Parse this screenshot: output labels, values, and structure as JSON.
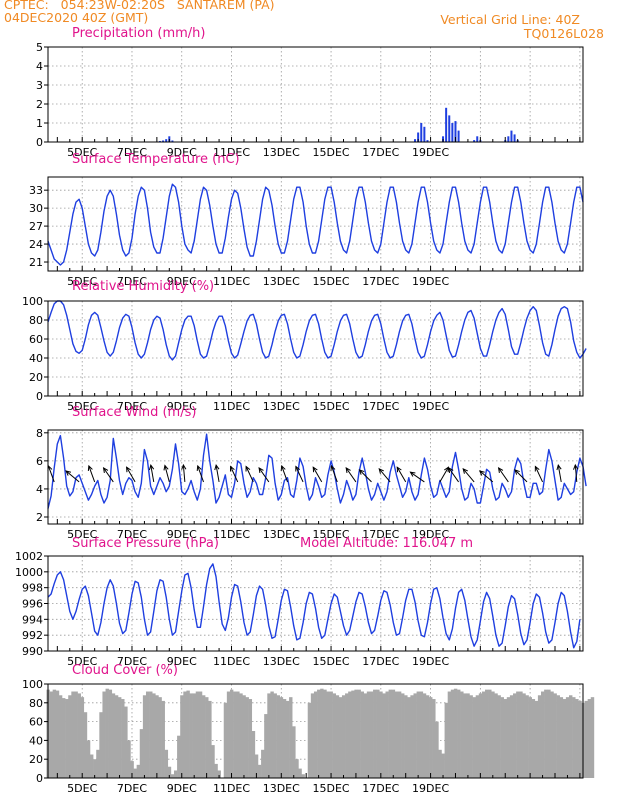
{
  "header": {
    "line1_left": "CPTEC:   054:23W-02:20S   SANTAREM (PA)",
    "line2_left": "04DEC2020 40Z (GMT)",
    "line1_right": "Vertical Grid Line: 40Z",
    "line2_right": "TQ0126L028"
  },
  "colors": {
    "header": "#f08a24",
    "panel_title": "#e0148c",
    "series": "#1f3fe0",
    "cloud": "#a8a8a8",
    "wind_barb": "#000000",
    "grid": "#9a9a9a"
  },
  "x_axis": {
    "start": "04DEC2020 00Z",
    "step_hours": 3,
    "tick_labels": [
      "5DEC",
      "7DEC",
      "9DEC",
      "11DEC",
      "13DEC",
      "15DEC",
      "17DEC",
      "19DEC"
    ]
  },
  "chart_data": [
    {
      "type": "bar",
      "title": "Precipitation (mm/h)",
      "ylim": [
        0,
        5
      ],
      "yticks": [
        0,
        1,
        2,
        3,
        4,
        5
      ],
      "grid": true,
      "values": [
        0,
        0,
        0,
        0,
        0,
        0,
        0,
        0,
        0,
        0,
        0,
        0,
        0,
        0,
        0,
        0,
        0,
        0,
        0,
        0,
        0,
        0,
        0,
        0,
        0,
        0,
        0,
        0,
        0,
        0,
        0,
        0,
        0,
        0,
        0,
        0,
        0.05,
        0.08,
        0.15,
        0.3,
        0.08,
        0,
        0,
        0,
        0,
        0,
        0,
        0,
        0,
        0,
        0,
        0,
        0,
        0,
        0,
        0,
        0,
        0,
        0,
        0,
        0,
        0,
        0,
        0,
        0,
        0,
        0,
        0,
        0,
        0,
        0,
        0,
        0,
        0,
        0,
        0,
        0,
        0,
        0,
        0,
        0,
        0,
        0,
        0,
        0,
        0,
        0,
        0,
        0,
        0,
        0,
        0,
        0,
        0,
        0,
        0,
        0,
        0,
        0,
        0,
        0,
        0,
        0,
        0,
        0,
        0,
        0,
        0,
        0,
        0,
        0,
        0,
        0,
        0,
        0,
        0,
        0,
        0,
        0.15,
        0.5,
        1.0,
        0.8,
        0.1,
        0,
        0,
        0,
        0,
        0.3,
        1.8,
        1.4,
        1.0,
        1.1,
        0.6,
        0,
        0,
        0,
        0,
        0.1,
        0.3,
        0.1,
        0,
        0,
        0,
        0,
        0,
        0,
        0,
        0.1,
        0.3,
        0.6,
        0.4,
        0.1,
        0,
        0,
        0,
        0,
        0,
        0,
        0,
        0,
        0,
        0,
        0
      ]
    },
    {
      "type": "line",
      "title": "Surface Temperature (nC)",
      "ylim": [
        19.5,
        35.2
      ],
      "yticks": [
        21,
        24,
        27,
        30,
        33
      ],
      "grid": true,
      "values": [
        24.5,
        23,
        21.5,
        21,
        20.5,
        21,
        23,
        26,
        29,
        31,
        31.5,
        30,
        27,
        24,
        22.5,
        22,
        23,
        26,
        29.5,
        32,
        33,
        32,
        29,
        25.5,
        23,
        22,
        22.5,
        25,
        29,
        32,
        33.5,
        33,
        30,
        26,
        23.5,
        22.5,
        22.5,
        25,
        28.5,
        32,
        34,
        33.5,
        31,
        27,
        24,
        23,
        22.5,
        24.5,
        28,
        31.5,
        33.5,
        33,
        30.5,
        27,
        24,
        22.5,
        22.5,
        25,
        28.5,
        31.5,
        33,
        32.5,
        30,
        26.5,
        23.5,
        22,
        22,
        24.5,
        28,
        31.5,
        33.5,
        33,
        30.5,
        27,
        24,
        22.5,
        22.5,
        24.5,
        28,
        31.5,
        33.5,
        33.5,
        31,
        27,
        24,
        22.5,
        22.5,
        24.5,
        28,
        31.5,
        33.5,
        33.5,
        31,
        27.5,
        24.5,
        23,
        22.5,
        24.5,
        28,
        31.5,
        33.5,
        33.5,
        31,
        27.5,
        24.5,
        23,
        22.5,
        24,
        27.5,
        31,
        33.5,
        33.5,
        31,
        27.5,
        24.5,
        23,
        22.5,
        24,
        27.5,
        31,
        33.5,
        33.5,
        31,
        27.5,
        24.5,
        23,
        22.5,
        24,
        27.5,
        31,
        33.5,
        33.5,
        31,
        27.5,
        24.5,
        23,
        22.5,
        24,
        27.5,
        31,
        33.5,
        33.5,
        31,
        27.5,
        24.5,
        23,
        22.5,
        24,
        27.5,
        31,
        33.5,
        33.5,
        31,
        27.5,
        24.5,
        23,
        22.5,
        24,
        27.5,
        31,
        33.5,
        33.5,
        31,
        27.5,
        24.5,
        23,
        22.5,
        24,
        27.5,
        31,
        33.5,
        33.5,
        31
      ]
    },
    {
      "type": "line",
      "title": "Relative Humidity (%)",
      "ylim": [
        0,
        100
      ],
      "yticks": [
        0,
        20,
        40,
        60,
        80,
        100
      ],
      "grid": true,
      "values": [
        78,
        88,
        97,
        100,
        100,
        96,
        85,
        70,
        55,
        47,
        45,
        48,
        60,
        75,
        85,
        88,
        85,
        72,
        58,
        46,
        42,
        46,
        58,
        72,
        82,
        86,
        84,
        72,
        56,
        44,
        40,
        44,
        56,
        70,
        80,
        84,
        82,
        70,
        54,
        42,
        38,
        42,
        56,
        70,
        80,
        84,
        84,
        74,
        58,
        44,
        40,
        42,
        54,
        68,
        78,
        84,
        84,
        74,
        58,
        45,
        40,
        43,
        55,
        68,
        79,
        85,
        86,
        76,
        60,
        46,
        40,
        42,
        54,
        68,
        79,
        85,
        86,
        76,
        60,
        46,
        40,
        42,
        54,
        68,
        79,
        85,
        86,
        76,
        60,
        46,
        40,
        42,
        54,
        68,
        79,
        85,
        86,
        76,
        60,
        46,
        40,
        42,
        54,
        68,
        79,
        85,
        86,
        76,
        60,
        46,
        40,
        42,
        54,
        68,
        79,
        85,
        86,
        76,
        60,
        46,
        40,
        42,
        54,
        68,
        79,
        85,
        88,
        80,
        64,
        48,
        41,
        42,
        54,
        68,
        80,
        88,
        90,
        82,
        66,
        50,
        42,
        42,
        54,
        68,
        80,
        88,
        92,
        86,
        70,
        52,
        44,
        44,
        56,
        70,
        82,
        90,
        94,
        90,
        74,
        56,
        44,
        42,
        54,
        70,
        84,
        92,
        94,
        92,
        78,
        58,
        46,
        40,
        44,
        50
      ]
    },
    {
      "type": "line",
      "title": "Surface Wind (m/s)",
      "ylim": [
        1.5,
        8.2
      ],
      "yticks": [
        2,
        4,
        6,
        8
      ],
      "grid": true,
      "values": [
        2.6,
        3.5,
        5.5,
        7.2,
        7.8,
        6.2,
        4.2,
        3.5,
        3.8,
        4.8,
        5.0,
        4.4,
        3.8,
        3.2,
        3.6,
        4.2,
        4.6,
        3.6,
        3.0,
        3.4,
        4.6,
        7.6,
        6.2,
        4.6,
        3.6,
        4.4,
        4.8,
        4.6,
        3.8,
        3.4,
        4.4,
        6.8,
        6.0,
        4.2,
        3.6,
        4.2,
        4.8,
        4.4,
        3.8,
        4.2,
        5.4,
        7.2,
        5.8,
        3.8,
        3.6,
        4.0,
        4.6,
        3.8,
        3.2,
        4.0,
        6.4,
        7.9,
        6.0,
        4.6,
        3.0,
        3.4,
        4.2,
        5.0,
        3.6,
        3.4,
        4.4,
        6.0,
        5.8,
        4.4,
        3.4,
        3.8,
        4.8,
        4.4,
        3.6,
        3.6,
        4.8,
        6.4,
        6.2,
        4.4,
        3.2,
        3.6,
        4.6,
        4.8,
        3.6,
        3.4,
        4.6,
        6.2,
        5.6,
        4.2,
        3.2,
        3.6,
        4.8,
        4.2,
        3.4,
        3.6,
        5.0,
        6.0,
        5.2,
        4.0,
        3.0,
        3.6,
        4.6,
        4.0,
        3.2,
        3.6,
        5.2,
        6.2,
        5.2,
        4.0,
        3.2,
        3.6,
        4.4,
        3.8,
        3.2,
        3.8,
        5.2,
        6.0,
        5.0,
        4.2,
        3.4,
        3.8,
        4.8,
        3.8,
        3.2,
        3.6,
        5.0,
        6.2,
        5.4,
        4.2,
        3.4,
        3.6,
        4.6,
        4.0,
        3.4,
        3.8,
        5.6,
        6.6,
        5.4,
        4.0,
        3.2,
        3.4,
        4.4,
        4.0,
        3.0,
        3.0,
        4.2,
        5.4,
        5.2,
        4.0,
        3.2,
        3.4,
        4.4,
        4.0,
        3.4,
        3.8,
        5.4,
        6.2,
        5.8,
        4.4,
        3.4,
        3.4,
        4.4,
        4.4,
        3.6,
        3.8,
        5.4,
        6.8,
        6.0,
        4.6,
        3.2,
        3.4,
        4.4,
        4.0,
        3.6,
        3.8,
        5.2,
        6.2,
        5.6,
        4.2
      ],
      "barbs": [
        {
          "i": 2,
          "dir_deg": 200
        },
        {
          "i": 10,
          "dir_deg": 230
        },
        {
          "i": 15,
          "dir_deg": 200
        },
        {
          "i": 21,
          "dir_deg": 215
        },
        {
          "i": 28,
          "dir_deg": 210
        },
        {
          "i": 34,
          "dir_deg": 190
        },
        {
          "i": 39,
          "dir_deg": 195
        },
        {
          "i": 44,
          "dir_deg": 185
        },
        {
          "i": 50,
          "dir_deg": 200
        },
        {
          "i": 55,
          "dir_deg": 190
        },
        {
          "i": 61,
          "dir_deg": 205
        },
        {
          "i": 66,
          "dir_deg": 205
        },
        {
          "i": 71,
          "dir_deg": 215
        },
        {
          "i": 77,
          "dir_deg": 200
        },
        {
          "i": 82,
          "dir_deg": 205
        },
        {
          "i": 88,
          "dir_deg": 210
        },
        {
          "i": 93,
          "dir_deg": 200
        },
        {
          "i": 99,
          "dir_deg": 215
        },
        {
          "i": 104,
          "dir_deg": 225
        },
        {
          "i": 110,
          "dir_deg": 220
        },
        {
          "i": 115,
          "dir_deg": 210
        },
        {
          "i": 121,
          "dir_deg": 235
        },
        {
          "i": 126,
          "dir_deg": 150
        },
        {
          "i": 132,
          "dir_deg": 215
        },
        {
          "i": 137,
          "dir_deg": 220
        },
        {
          "i": 143,
          "dir_deg": 230
        },
        {
          "i": 148,
          "dir_deg": 215
        },
        {
          "i": 154,
          "dir_deg": 225
        },
        {
          "i": 159,
          "dir_deg": 205
        },
        {
          "i": 165,
          "dir_deg": 190
        },
        {
          "i": 170,
          "dir_deg": 185
        }
      ]
    },
    {
      "type": "line",
      "title": "Surface Pressure (hPa)",
      "annotation": "Model Altitude: 116.047 m",
      "ylim": [
        990,
        1002
      ],
      "yticks": [
        990,
        992,
        994,
        996,
        998,
        1000,
        1002
      ],
      "grid": true,
      "values": [
        996.8,
        997.2,
        998.5,
        999.6,
        1000.0,
        999.0,
        997.0,
        995.0,
        994.0,
        995.0,
        996.5,
        997.8,
        998.2,
        997.0,
        994.8,
        992.5,
        992.0,
        993.6,
        996.0,
        998.0,
        999.0,
        998.2,
        996.0,
        993.5,
        992.2,
        992.6,
        994.8,
        997.2,
        998.8,
        998.6,
        996.8,
        994.0,
        992.0,
        992.4,
        995.0,
        997.6,
        999.0,
        998.8,
        996.8,
        994.0,
        992.0,
        992.4,
        995.0,
        997.6,
        999.6,
        999.8,
        998.0,
        995.2,
        993.0,
        993.0,
        995.6,
        998.4,
        1000.4,
        1001.0,
        999.4,
        996.2,
        993.4,
        992.6,
        994.2,
        996.8,
        998.4,
        998.2,
        996.2,
        993.6,
        992.0,
        992.4,
        994.6,
        997.0,
        998.2,
        997.8,
        995.8,
        993.2,
        991.6,
        991.8,
        994.0,
        996.4,
        997.8,
        997.6,
        995.6,
        993.2,
        991.4,
        991.6,
        993.6,
        996.0,
        997.4,
        997.2,
        995.4,
        993.0,
        991.6,
        992.0,
        994.0,
        996.0,
        997.2,
        996.8,
        995.0,
        993.2,
        992.0,
        992.6,
        994.4,
        996.2,
        997.4,
        997.2,
        995.6,
        993.6,
        992.2,
        992.6,
        994.4,
        996.4,
        997.6,
        997.4,
        995.8,
        993.6,
        992.0,
        992.2,
        994.2,
        996.4,
        997.8,
        997.8,
        996.2,
        993.8,
        992.0,
        991.8,
        993.6,
        996.0,
        997.8,
        998.0,
        996.6,
        994.2,
        992.2,
        991.4,
        992.8,
        995.4,
        997.4,
        997.8,
        996.4,
        994.0,
        991.8,
        990.6,
        991.4,
        993.8,
        996.2,
        997.4,
        996.6,
        994.4,
        992.0,
        990.6,
        991.0,
        993.2,
        995.6,
        997.0,
        996.6,
        994.6,
        992.2,
        990.8,
        991.4,
        993.6,
        996.0,
        997.2,
        996.8,
        994.8,
        992.4,
        991.0,
        991.4,
        993.6,
        996.0,
        997.4,
        997.0,
        995.0,
        992.4,
        990.4,
        991.2,
        994.0
      ]
    },
    {
      "type": "area",
      "title": "Cloud Cover (%)",
      "ylim": [
        0,
        100
      ],
      "yticks": [
        0,
        20,
        40,
        60,
        80,
        100
      ],
      "grid": true,
      "values": [
        94,
        92,
        94,
        93,
        88,
        85,
        84,
        88,
        92,
        92,
        90,
        86,
        70,
        40,
        25,
        20,
        30,
        70,
        92,
        95,
        94,
        90,
        88,
        86,
        84,
        76,
        40,
        18,
        10,
        14,
        52,
        88,
        92,
        92,
        90,
        88,
        86,
        82,
        30,
        12,
        4,
        8,
        45,
        88,
        92,
        93,
        90,
        90,
        92,
        92,
        88,
        86,
        82,
        35,
        15,
        8,
        0,
        80,
        92,
        94,
        92,
        92,
        90,
        88,
        86,
        84,
        50,
        25,
        14,
        30,
        68,
        90,
        92,
        90,
        88,
        86,
        84,
        82,
        86,
        55,
        20,
        10,
        4,
        0,
        80,
        90,
        92,
        94,
        95,
        94,
        92,
        92,
        90,
        88,
        86,
        88,
        90,
        92,
        93,
        94,
        94,
        92,
        90,
        92,
        92,
        94,
        94,
        92,
        90,
        92,
        94,
        94,
        92,
        92,
        90,
        88,
        86,
        88,
        90,
        92,
        92,
        90,
        88,
        86,
        84,
        60,
        30,
        26,
        80,
        92,
        94,
        95,
        94,
        92,
        90,
        90,
        88,
        86,
        88,
        90,
        92,
        94,
        94,
        92,
        90,
        88,
        86,
        84,
        86,
        88,
        90,
        92,
        92,
        90,
        88,
        86,
        84,
        82,
        88,
        92,
        94,
        94,
        92,
        90,
        88,
        86,
        84,
        86,
        88,
        86,
        84,
        82,
        80,
        82,
        84,
        86
      ]
    }
  ]
}
